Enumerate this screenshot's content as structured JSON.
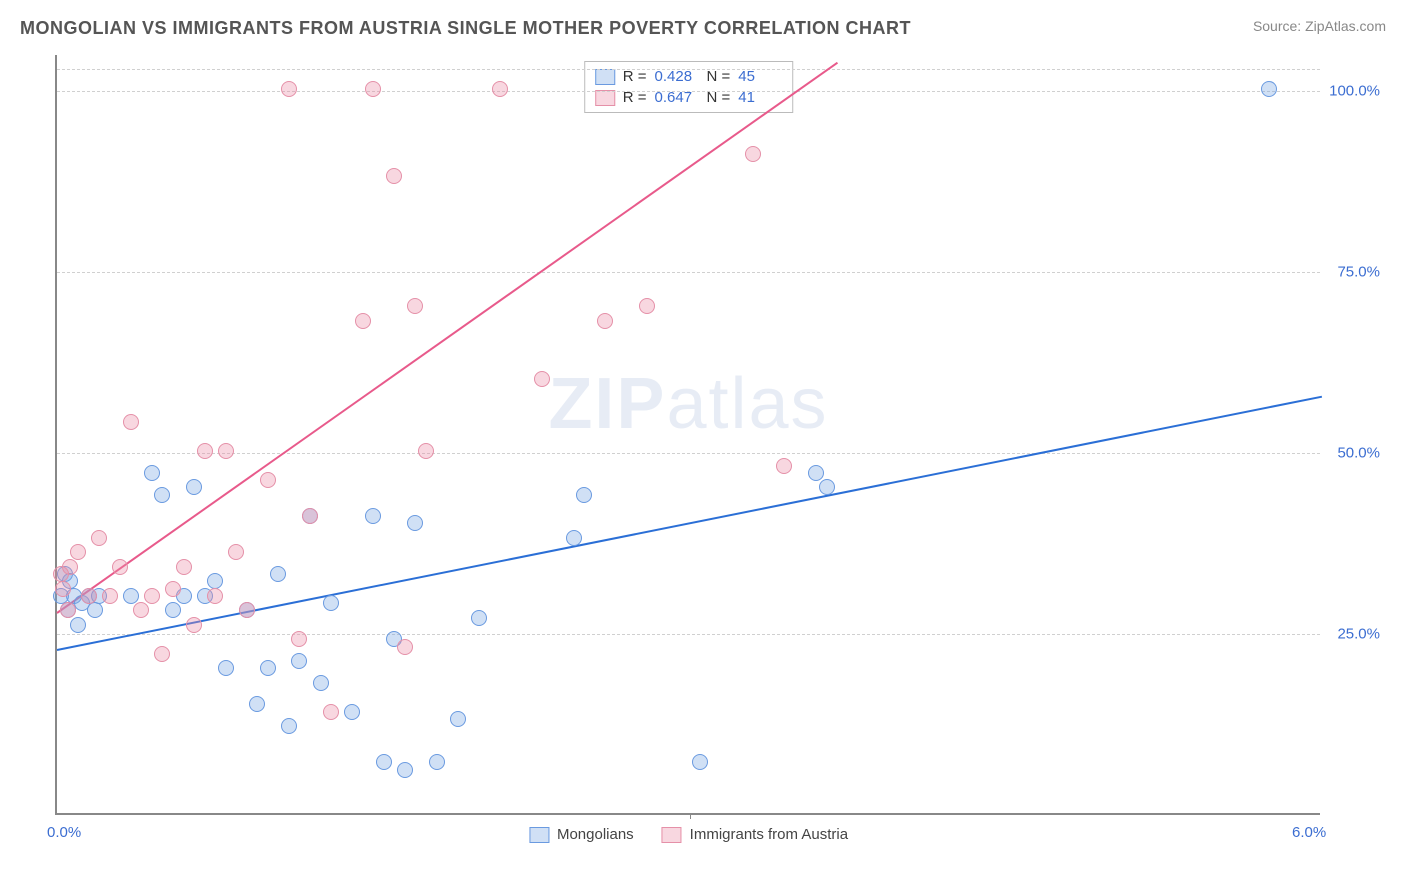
{
  "header": {
    "title": "MONGOLIAN VS IMMIGRANTS FROM AUSTRIA SINGLE MOTHER POVERTY CORRELATION CHART",
    "source_label": "Source: ZipAtlas.com"
  },
  "chart": {
    "type": "scatter",
    "ylabel": "Single Mother Poverty",
    "watermark": "ZIPatlas",
    "xlim": [
      0,
      6.0
    ],
    "ylim": [
      0,
      105
    ],
    "xtick_labels": [
      "0.0%",
      "6.0%"
    ],
    "xtick_positions": [
      0,
      6.0
    ],
    "xtick_marks_at": [
      3.0
    ],
    "ytick_labels": [
      "25.0%",
      "50.0%",
      "75.0%",
      "100.0%"
    ],
    "ytick_positions": [
      25,
      50,
      75,
      100
    ],
    "grid_color": "#d0d0d0",
    "axis_color": "#888888",
    "label_fontsize": 15,
    "tick_color": "#3b6dd1",
    "point_radius": 8,
    "series": [
      {
        "name": "Mongolians",
        "fill": "rgba(120,165,225,0.35)",
        "stroke": "#6a9ae0",
        "trend_color": "#2b6fd6",
        "R": "0.428",
        "N": "45",
        "trend": {
          "x1": 0,
          "y1": 23,
          "x2": 6.0,
          "y2": 58
        },
        "points": [
          [
            0.02,
            30
          ],
          [
            0.04,
            33
          ],
          [
            0.06,
            32
          ],
          [
            0.05,
            28
          ],
          [
            0.08,
            30
          ],
          [
            0.1,
            26
          ],
          [
            0.12,
            29
          ],
          [
            0.15,
            30
          ],
          [
            0.18,
            28
          ],
          [
            0.2,
            30
          ],
          [
            0.35,
            30
          ],
          [
            0.45,
            47
          ],
          [
            0.5,
            44
          ],
          [
            0.55,
            28
          ],
          [
            0.6,
            30
          ],
          [
            0.65,
            45
          ],
          [
            0.7,
            30
          ],
          [
            0.75,
            32
          ],
          [
            0.8,
            20
          ],
          [
            0.9,
            28
          ],
          [
            0.95,
            15
          ],
          [
            1.0,
            20
          ],
          [
            1.05,
            33
          ],
          [
            1.1,
            12
          ],
          [
            1.15,
            21
          ],
          [
            1.2,
            41
          ],
          [
            1.25,
            18
          ],
          [
            1.3,
            29
          ],
          [
            1.4,
            14
          ],
          [
            1.5,
            41
          ],
          [
            1.55,
            7
          ],
          [
            1.6,
            24
          ],
          [
            1.65,
            6
          ],
          [
            1.7,
            40
          ],
          [
            1.8,
            7
          ],
          [
            1.9,
            13
          ],
          [
            2.0,
            27
          ],
          [
            2.45,
            38
          ],
          [
            2.5,
            44
          ],
          [
            3.05,
            7
          ],
          [
            3.6,
            47
          ],
          [
            3.65,
            45
          ],
          [
            5.75,
            100
          ]
        ]
      },
      {
        "name": "Immigrants from Austria",
        "fill": "rgba(235,140,165,0.35)",
        "stroke": "#e590a8",
        "trend_color": "#e85a8b",
        "R": "0.647",
        "N": "41",
        "trend": {
          "x1": 0,
          "y1": 28,
          "x2": 3.7,
          "y2": 104
        },
        "points": [
          [
            0.02,
            33
          ],
          [
            0.03,
            31
          ],
          [
            0.05,
            28
          ],
          [
            0.06,
            34
          ],
          [
            0.1,
            36
          ],
          [
            0.15,
            30
          ],
          [
            0.2,
            38
          ],
          [
            0.25,
            30
          ],
          [
            0.3,
            34
          ],
          [
            0.35,
            54
          ],
          [
            0.4,
            28
          ],
          [
            0.45,
            30
          ],
          [
            0.5,
            22
          ],
          [
            0.55,
            31
          ],
          [
            0.6,
            34
          ],
          [
            0.65,
            26
          ],
          [
            0.7,
            50
          ],
          [
            0.75,
            30
          ],
          [
            0.8,
            50
          ],
          [
            0.85,
            36
          ],
          [
            0.9,
            28
          ],
          [
            1.0,
            46
          ],
          [
            1.1,
            100
          ],
          [
            1.15,
            24
          ],
          [
            1.2,
            41
          ],
          [
            1.3,
            14
          ],
          [
            1.45,
            68
          ],
          [
            1.5,
            100
          ],
          [
            1.6,
            88
          ],
          [
            1.65,
            23
          ],
          [
            1.7,
            70
          ],
          [
            1.75,
            50
          ],
          [
            2.1,
            100
          ],
          [
            2.3,
            60
          ],
          [
            2.6,
            68
          ],
          [
            2.8,
            70
          ],
          [
            3.3,
            91
          ],
          [
            3.45,
            48
          ]
        ]
      }
    ],
    "stats_legend": {
      "rows": [
        {
          "swatch_fill": "rgba(120,165,225,0.35)",
          "swatch_stroke": "#6a9ae0",
          "r_label": "R =",
          "r_val": "0.428",
          "n_label": "N =",
          "n_val": "45"
        },
        {
          "swatch_fill": "rgba(235,140,165,0.35)",
          "swatch_stroke": "#e590a8",
          "r_label": "R =",
          "r_val": "0.647",
          "n_label": "N =",
          "n_val": "41"
        }
      ]
    },
    "bottom_legend": [
      {
        "swatch_fill": "rgba(120,165,225,0.35)",
        "swatch_stroke": "#6a9ae0",
        "label": "Mongolians"
      },
      {
        "swatch_fill": "rgba(235,140,165,0.35)",
        "swatch_stroke": "#e590a8",
        "label": "Immigrants from Austria"
      }
    ]
  }
}
